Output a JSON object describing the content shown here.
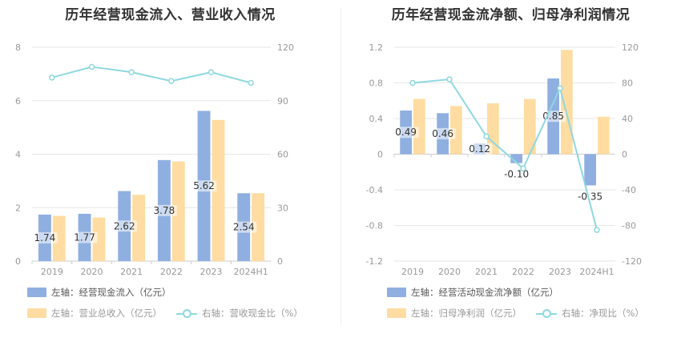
{
  "colors": {
    "bar1": "#8fafe0",
    "bar2": "#fedca2",
    "line": "#8fd8df",
    "grid": "#e6e6e6",
    "axis": "#999999",
    "label_bg": "#e8edf7"
  },
  "chart_data": [
    {
      "type": "bar",
      "title": "历年经营现金流入、营业收入情况",
      "categories": [
        "2019",
        "2020",
        "2021",
        "2022",
        "2023",
        "2024H1"
      ],
      "left_axis": {
        "ticks": [
          "0",
          "2",
          "4",
          "6",
          "8"
        ],
        "ylim": [
          0,
          8
        ]
      },
      "right_axis": {
        "ticks": [
          "0",
          "30",
          "60",
          "90",
          "120"
        ],
        "ylim": [
          0,
          120
        ]
      },
      "series": [
        {
          "name": "左轴：经营现金流入（亿元）",
          "axis": "left",
          "kind": "bar",
          "values": [
            1.74,
            1.77,
            2.62,
            3.78,
            5.62,
            2.54
          ],
          "labels": [
            "1.74",
            "1.77",
            "2.62",
            "3.78",
            "5.62",
            "2.54"
          ]
        },
        {
          "name": "左轴：营业总收入（亿元）",
          "axis": "left",
          "kind": "bar",
          "values": [
            1.69,
            1.63,
            2.48,
            3.73,
            5.28,
            2.54
          ]
        },
        {
          "name": "右轴：营收现金比（%）",
          "axis": "right",
          "kind": "line",
          "values": [
            103,
            109,
            106,
            101,
            106,
            100
          ]
        }
      ],
      "grid": true
    },
    {
      "type": "bar",
      "title": "历年经营现金流净额、归母净利润情况",
      "categories": [
        "2019",
        "2020",
        "2021",
        "2022",
        "2023",
        "2024H1"
      ],
      "left_axis": {
        "ticks": [
          "-1.2",
          "-0.8",
          "-0.4",
          "0",
          "0.4",
          "0.8",
          "1.2"
        ],
        "ylim": [
          -1.2,
          1.2
        ]
      },
      "right_axis": {
        "ticks": [
          "-120",
          "-80",
          "-40",
          "0",
          "40",
          "80",
          "120"
        ],
        "ylim": [
          -120,
          120
        ]
      },
      "series": [
        {
          "name": "左轴：经营活动现金流净额（亿元）",
          "axis": "left",
          "kind": "bar",
          "values": [
            0.49,
            0.46,
            0.12,
            -0.1,
            0.85,
            -0.35
          ],
          "labels": [
            "0.49",
            "0.46",
            "0.12",
            "-0.10",
            "0.85",
            "-0.35"
          ]
        },
        {
          "name": "左轴：归母净利润（亿元）",
          "axis": "left",
          "kind": "bar",
          "values": [
            0.62,
            0.54,
            0.57,
            0.62,
            1.17,
            0.42
          ]
        },
        {
          "name": "右轴：净现比（%）",
          "axis": "right",
          "kind": "line",
          "values": [
            80,
            84,
            20,
            -16,
            74,
            -85
          ]
        }
      ],
      "grid": true
    }
  ]
}
